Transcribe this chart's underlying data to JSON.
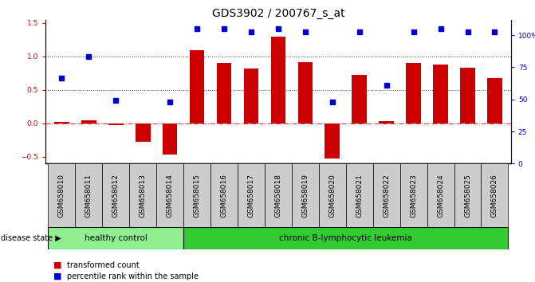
{
  "title": "GDS3902 / 200767_s_at",
  "categories": [
    "GSM658010",
    "GSM658011",
    "GSM658012",
    "GSM658013",
    "GSM658014",
    "GSM658015",
    "GSM658016",
    "GSM658017",
    "GSM658018",
    "GSM658019",
    "GSM658020",
    "GSM658021",
    "GSM658022",
    "GSM658023",
    "GSM658024",
    "GSM658025",
    "GSM658026"
  ],
  "bar_values": [
    0.02,
    0.05,
    -0.02,
    -0.28,
    -0.47,
    1.1,
    0.9,
    0.82,
    1.3,
    0.92,
    -0.53,
    0.73,
    0.03,
    0.9,
    0.88,
    0.83,
    0.68
  ],
  "dot_values": [
    0.68,
    1.0,
    0.35,
    null,
    0.32,
    1.42,
    1.42,
    1.37,
    1.42,
    1.37,
    0.32,
    1.37,
    0.57,
    1.37,
    1.42,
    1.37,
    1.37
  ],
  "bar_color": "#cc0000",
  "dot_color": "#0000cc",
  "ylim_left": [
    -0.6,
    1.55
  ],
  "ylim_right": [
    0,
    112
  ],
  "yticks_left": [
    -0.5,
    0.0,
    0.5,
    1.0,
    1.5
  ],
  "yticks_right": [
    0,
    25,
    50,
    75,
    100
  ],
  "ytick_labels_right": [
    "0",
    "25",
    "50",
    "75",
    "100%"
  ],
  "hline_y": [
    0.0,
    0.5,
    1.0
  ],
  "hline_styles": [
    "dashdot",
    "dotted",
    "dotted"
  ],
  "hline_colors": [
    "#cc3333",
    "#333333",
    "#333333"
  ],
  "group1_label": "healthy control",
  "group2_label": "chronic B-lymphocytic leukemia",
  "group1_count": 5,
  "disease_state_label": "disease state",
  "legend_bar_label": "transformed count",
  "legend_dot_label": "percentile rank within the sample",
  "group1_color": "#90ee90",
  "group2_color": "#33cc33",
  "tick_bg_color": "#cccccc",
  "title_fontsize": 10,
  "tick_fontsize": 6.5,
  "label_fontsize": 7,
  "group_fontsize": 7.5
}
